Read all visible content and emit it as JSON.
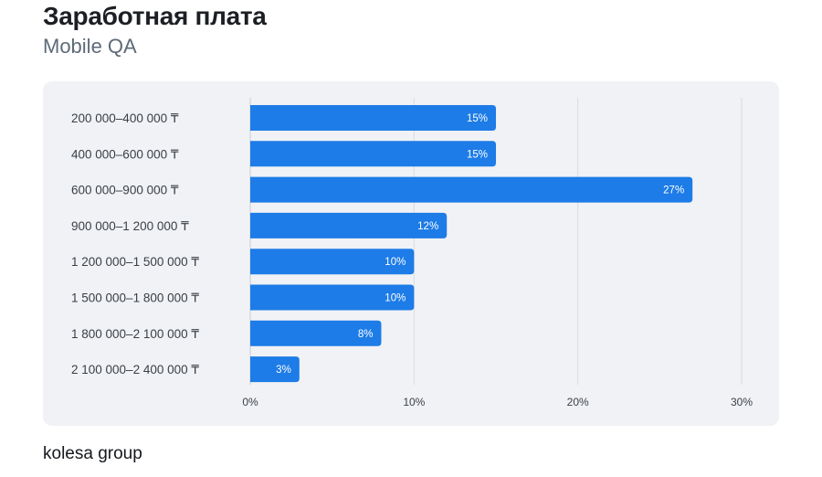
{
  "header": {
    "title": "Заработная плата",
    "subtitle": "Mobile QA"
  },
  "footer": {
    "brand": "kolesa group"
  },
  "colors": {
    "bar": "#1d7ce7",
    "grid": "#d8dbe0",
    "panel": "#f0f2f5",
    "text": "#3a3f46",
    "bar_label": "#ffffff"
  },
  "chart_data": {
    "type": "bar",
    "orientation": "horizontal",
    "title": "Заработная плата",
    "subtitle": "Mobile QA",
    "categories": [
      "200 000–400 000 ₸",
      "400 000–600 000 ₸",
      "600 000–900 000 ₸",
      "900 000–1 200 000 ₸",
      "1 200 000–1 500 000 ₸",
      "1 500 000–1 800 000 ₸",
      "1 800 000–2 100 000 ₸",
      "2 100 000–2 400 000 ₸"
    ],
    "values": [
      15,
      15,
      27,
      12,
      10,
      10,
      8,
      3
    ],
    "value_labels": [
      "15%",
      "15%",
      "27%",
      "12%",
      "10%",
      "10%",
      "8%",
      "3%"
    ],
    "xlim": [
      0,
      30
    ],
    "x_ticks": [
      0,
      10,
      20,
      30
    ],
    "x_tick_labels": [
      "0%",
      "10%",
      "20%",
      "30%"
    ],
    "grid": true,
    "legend": "none"
  }
}
